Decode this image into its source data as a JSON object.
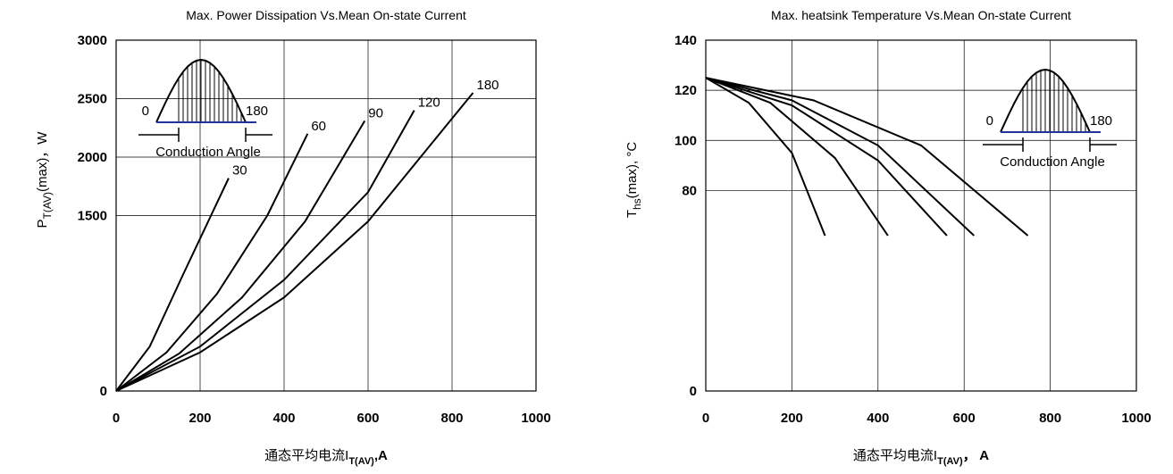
{
  "chart_data": [
    {
      "type": "line",
      "title": "Max. Power Dissipation Vs.Mean On-state Current",
      "y_label": {
        "main": "P",
        "sub": "T(AV)",
        "rest": "(max)，W"
      },
      "x_label": {
        "main": "通态平均电流I",
        "sub": "T(AV)",
        "rest": ",A"
      },
      "xlim": [
        0,
        1000
      ],
      "xticks": [
        0,
        200,
        400,
        600,
        800,
        1000
      ],
      "ylim": [
        0,
        3000
      ],
      "yticks": [
        0,
        1500,
        2000,
        2500,
        3000
      ],
      "grid": true,
      "inset": {
        "start_label": "0",
        "end_label": "180",
        "caption": "Conduction Angle"
      },
      "series": [
        {
          "name": "30",
          "color": "#000000",
          "x": [
            0,
            80,
            160,
            268
          ],
          "values": [
            0,
            380,
            1000,
            1820
          ]
        },
        {
          "name": "60",
          "color": "#000000",
          "x": [
            0,
            120,
            240,
            360,
            456
          ],
          "values": [
            0,
            330,
            830,
            1500,
            2200
          ]
        },
        {
          "name": "90",
          "color": "#000000",
          "x": [
            0,
            150,
            300,
            450,
            592
          ],
          "values": [
            0,
            320,
            800,
            1450,
            2310
          ]
        },
        {
          "name": "120",
          "color": "#000000",
          "x": [
            0,
            200,
            400,
            600,
            710
          ],
          "values": [
            0,
            380,
            950,
            1700,
            2400
          ]
        },
        {
          "name": "180",
          "color": "#000000",
          "x": [
            0,
            200,
            400,
            600,
            850
          ],
          "values": [
            0,
            330,
            800,
            1450,
            2550
          ]
        }
      ]
    },
    {
      "type": "line",
      "title": "Max. heatsink Temperature Vs.Mean On-state Current",
      "y_label": {
        "main": "T",
        "sub": "hs",
        "rest": "(max), °C"
      },
      "x_label": {
        "main": "通态平均电流I",
        "sub": "T(AV)",
        "rest": "， A"
      },
      "xlim": [
        0,
        1000
      ],
      "xticks": [
        0,
        200,
        400,
        600,
        800,
        1000
      ],
      "ylim": [
        0,
        140
      ],
      "yticks": [
        0,
        80,
        100,
        120,
        140
      ],
      "grid": true,
      "inset": {
        "start_label": "0",
        "end_label": "180",
        "caption": "Conduction Angle"
      },
      "series": [
        {
          "color": "#000000",
          "x": [
            0,
            100,
            200,
            277
          ],
          "values": [
            125,
            115,
            95,
            62
          ]
        },
        {
          "color": "#000000",
          "x": [
            0,
            150,
            300,
            423
          ],
          "values": [
            125,
            115,
            93,
            62
          ]
        },
        {
          "color": "#000000",
          "x": [
            0,
            200,
            400,
            560
          ],
          "values": [
            125,
            114,
            92,
            62
          ]
        },
        {
          "color": "#000000",
          "x": [
            0,
            200,
            400,
            623
          ],
          "values": [
            125,
            116,
            98,
            62
          ]
        },
        {
          "color": "#000000",
          "x": [
            0,
            250,
            500,
            748
          ],
          "values": [
            125,
            116,
            98,
            62
          ]
        }
      ]
    }
  ]
}
